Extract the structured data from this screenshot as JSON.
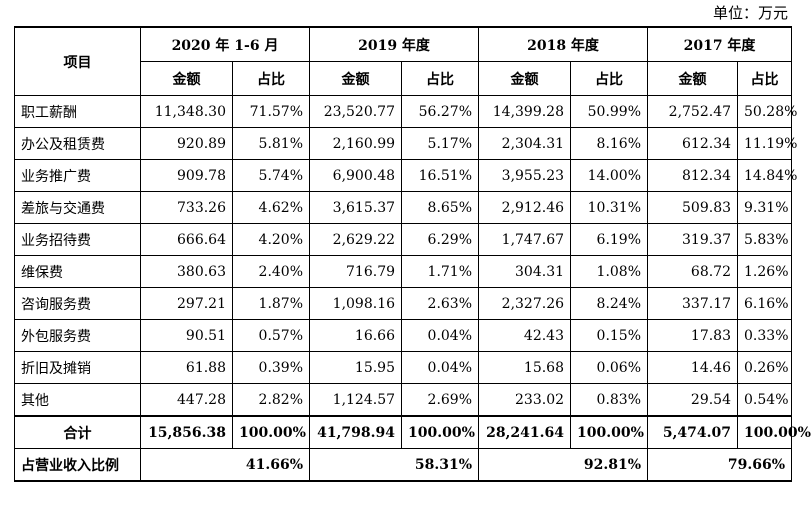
{
  "unit": "单位：万元",
  "header": {
    "item": "项目",
    "periods": [
      "2020 年 1-6 月",
      "2019 年度",
      "2018 年度",
      "2017 年度"
    ],
    "amount": "金额",
    "ratio": "占比"
  },
  "rows": [
    {
      "name": "职工薪酬",
      "v": [
        "11,348.30",
        "71.57%",
        "23,520.77",
        "56.27%",
        "14,399.28",
        "50.99%",
        "2,752.47",
        "50.28%"
      ]
    },
    {
      "name": "办公及租赁费",
      "v": [
        "920.89",
        "5.81%",
        "2,160.99",
        "5.17%",
        "2,304.31",
        "8.16%",
        "612.34",
        "11.19%"
      ]
    },
    {
      "name": "业务推广费",
      "v": [
        "909.78",
        "5.74%",
        "6,900.48",
        "16.51%",
        "3,955.23",
        "14.00%",
        "812.34",
        "14.84%"
      ]
    },
    {
      "name": "差旅与交通费",
      "v": [
        "733.26",
        "4.62%",
        "3,615.37",
        "8.65%",
        "2,912.46",
        "10.31%",
        "509.83",
        "9.31%"
      ]
    },
    {
      "name": "业务招待费",
      "v": [
        "666.64",
        "4.20%",
        "2,629.22",
        "6.29%",
        "1,747.67",
        "6.19%",
        "319.37",
        "5.83%"
      ]
    },
    {
      "name": "维保费",
      "v": [
        "380.63",
        "2.40%",
        "716.79",
        "1.71%",
        "304.31",
        "1.08%",
        "68.72",
        "1.26%"
      ]
    },
    {
      "name": "咨询服务费",
      "v": [
        "297.21",
        "1.87%",
        "1,098.16",
        "2.63%",
        "2,327.26",
        "8.24%",
        "337.17",
        "6.16%"
      ]
    },
    {
      "name": "外包服务费",
      "v": [
        "90.51",
        "0.57%",
        "16.66",
        "0.04%",
        "42.43",
        "0.15%",
        "17.83",
        "0.33%"
      ]
    },
    {
      "name": "折旧及摊销",
      "v": [
        "61.88",
        "0.39%",
        "15.95",
        "0.04%",
        "15.68",
        "0.06%",
        "14.46",
        "0.26%"
      ]
    },
    {
      "name": "其他",
      "v": [
        "447.28",
        "2.82%",
        "1,124.57",
        "2.69%",
        "233.02",
        "0.83%",
        "29.54",
        "0.54%"
      ]
    }
  ],
  "total": {
    "name": "合计",
    "v": [
      "15,856.38",
      "100.00%",
      "41,798.94",
      "100.00%",
      "28,241.64",
      "100.00%",
      "5,474.07",
      "100.00%"
    ]
  },
  "revenue_ratio": {
    "name": "占营业收入比例",
    "v": [
      "41.66%",
      "58.31%",
      "92.81%",
      "79.66%"
    ]
  }
}
